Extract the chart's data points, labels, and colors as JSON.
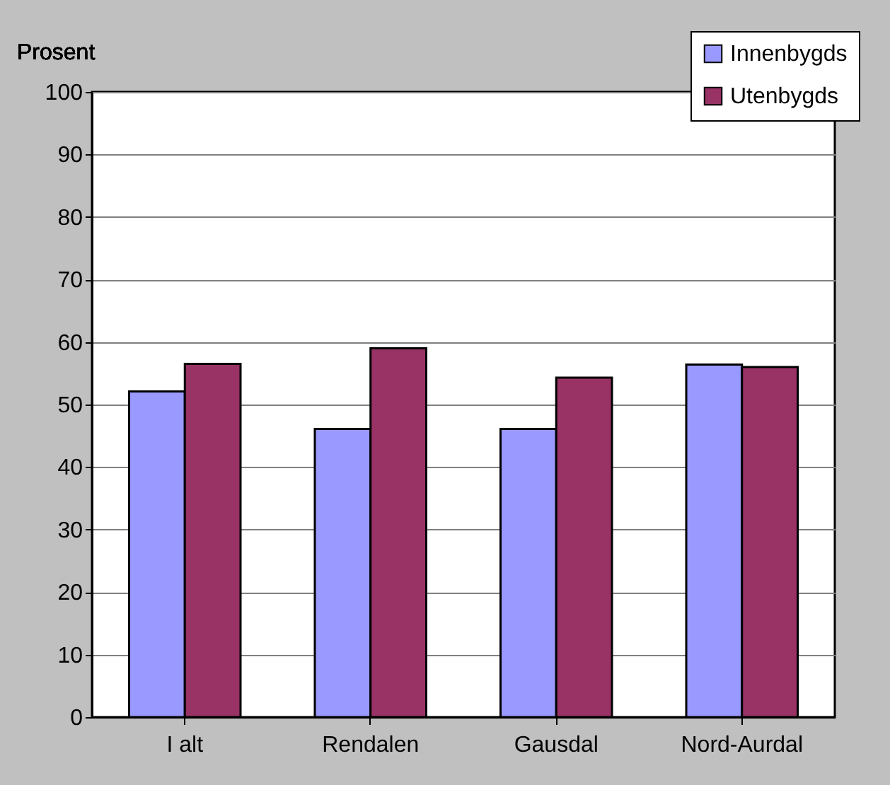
{
  "chart_data": {
    "type": "bar",
    "ylabel": "Prosent",
    "categories": [
      "I alt",
      "Rendalen",
      "Gausdal",
      "Nord-Aurdal"
    ],
    "series": [
      {
        "name": "Innenbygds",
        "color": "#9999ff",
        "values": [
          52.1,
          46.1,
          46.1,
          56.4
        ]
      },
      {
        "name": "Utenbygds",
        "color": "#993366",
        "values": [
          56.5,
          59.0,
          54.3,
          56.0
        ]
      }
    ],
    "ylim": [
      0,
      100
    ],
    "yticks": [
      0,
      10,
      20,
      30,
      40,
      50,
      60,
      70,
      80,
      90,
      100
    ],
    "grid": "y",
    "legend": "top right"
  }
}
